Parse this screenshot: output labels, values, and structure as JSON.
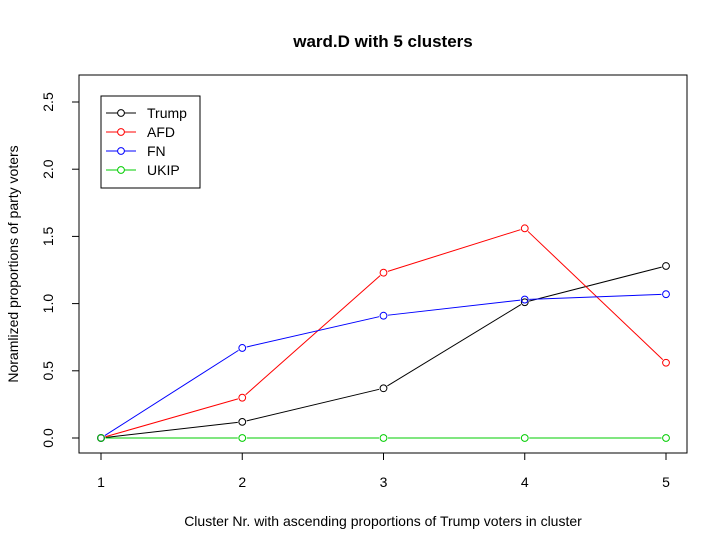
{
  "chart_data": {
    "type": "line",
    "title": "ward.D with 5 clusters",
    "xlabel": "Cluster Nr. with ascending proportions of Trump voters in cluster",
    "ylabel": "Noramlized proportions of party voters",
    "x": [
      1,
      2,
      3,
      4,
      5
    ],
    "x_ticks": [
      1,
      2,
      3,
      4,
      5
    ],
    "y_ticks": [
      0.0,
      0.5,
      1.0,
      1.5,
      2.0,
      2.5
    ],
    "y_tick_labels": [
      "0.0",
      "0.5",
      "1.0",
      "1.5",
      "2.0",
      "2.5"
    ],
    "xlim": [
      1,
      5
    ],
    "ylim": [
      0,
      2.5
    ],
    "grid": false,
    "legend_position": "top-left",
    "series": [
      {
        "name": "Trump",
        "color": "#000000",
        "values": [
          0.0,
          0.12,
          0.37,
          1.01,
          1.28
        ]
      },
      {
        "name": "AFD",
        "color": "#ff0000",
        "values": [
          0.0,
          0.3,
          1.23,
          1.56,
          0.56
        ]
      },
      {
        "name": "FN",
        "color": "#0000ff",
        "values": [
          0.0,
          0.67,
          0.91,
          1.03,
          1.07
        ]
      },
      {
        "name": "UKIP",
        "color": "#00cd00",
        "values": [
          0.0,
          0.0,
          0.0,
          0.0,
          0.0
        ]
      }
    ]
  }
}
